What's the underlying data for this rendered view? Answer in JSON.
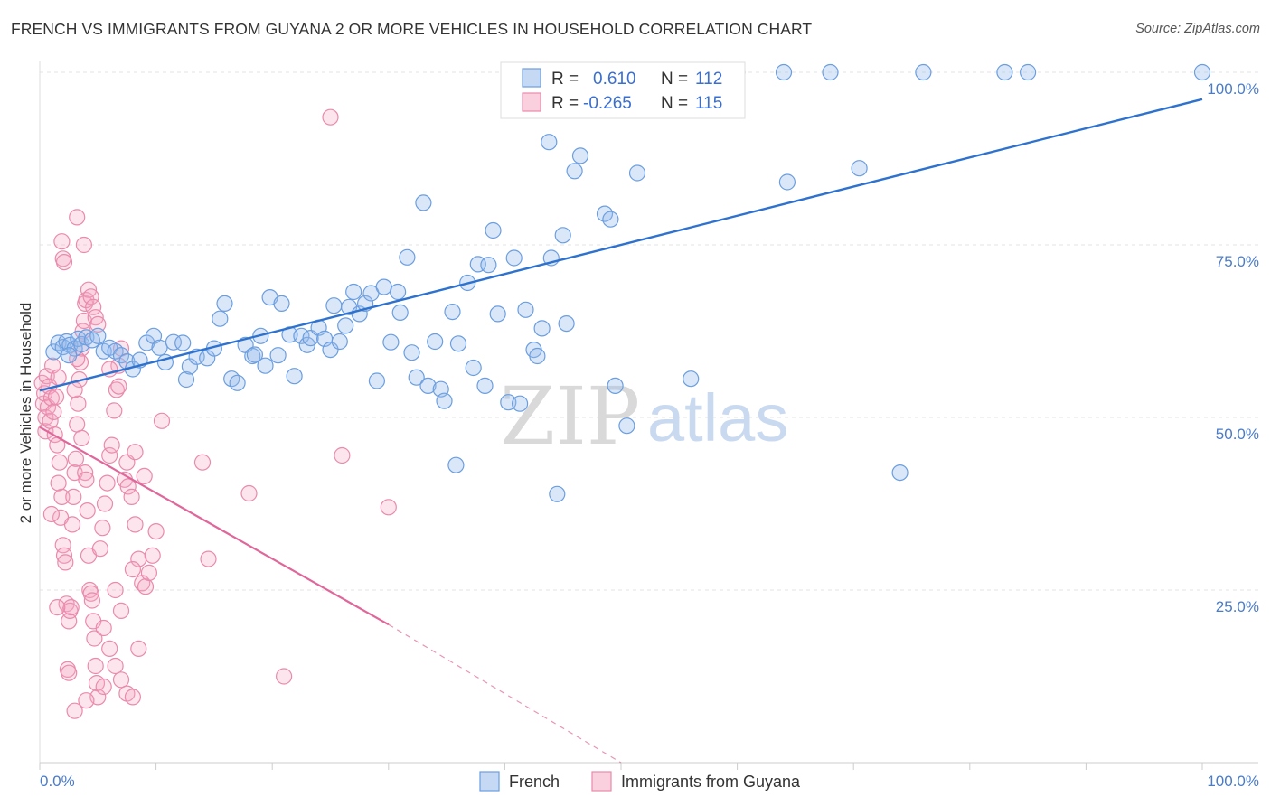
{
  "header": {
    "title": "FRENCH VS IMMIGRANTS FROM GUYANA 2 OR MORE VEHICLES IN HOUSEHOLD CORRELATION CHART",
    "source": "Source: ZipAtlas.com"
  },
  "watermark": {
    "zip": "ZIP",
    "atlas": "atlas"
  },
  "legend": {
    "rows": [
      {
        "r_label": "R =",
        "r_value": "0.610",
        "n_label": "N =",
        "n_value": "112"
      },
      {
        "r_label": "R =",
        "r_value": "-0.265",
        "n_label": "N =",
        "n_value": "115"
      }
    ]
  },
  "bottom_legend": {
    "french": "French",
    "guyana": "Immigrants from Guyana"
  },
  "colors": {
    "french": "#6b9ee0",
    "french_fill": "rgba(150,185,235,0.35)",
    "french_line": "#2e72cf",
    "guyana": "#ea8aac",
    "guyana_fill": "rgba(245,170,195,0.30)",
    "guyana_line": "#e0679a",
    "axis_text": "#4a7cc9",
    "grid": "#e3e3e3"
  },
  "chart_data": {
    "type": "scatter",
    "title": "FRENCH VS IMMIGRANTS FROM GUYANA 2 OR MORE VEHICLES IN HOUSEHOLD CORRELATION CHART",
    "xlabel": "",
    "ylabel": "2 or more Vehicles in Household",
    "xlim": [
      0,
      100
    ],
    "ylim": [
      0,
      100
    ],
    "x_tick_labels": [
      "0.0%",
      "100.0%"
    ],
    "y_tick_labels": [
      "25.0%",
      "50.0%",
      "75.0%",
      "100.0%"
    ],
    "y_ticks": [
      25,
      50,
      75,
      100
    ],
    "grid": true,
    "legend_position": "top-center",
    "series": [
      {
        "name": "French",
        "R": 0.61,
        "N": 112,
        "trend": {
          "x": [
            0,
            100
          ],
          "y": [
            53.9,
            96.1
          ]
        },
        "points": [
          [
            1.2,
            59.5
          ],
          [
            1.6,
            60.8
          ],
          [
            2.0,
            60.2
          ],
          [
            2.3,
            61.0
          ],
          [
            2.6,
            60.5
          ],
          [
            3.0,
            60.0
          ],
          [
            3.3,
            61.4
          ],
          [
            2.5,
            59.0
          ],
          [
            3.6,
            60.6
          ],
          [
            4.0,
            61.6
          ],
          [
            4.5,
            61.2
          ],
          [
            5.0,
            61.8
          ],
          [
            5.5,
            59.6
          ],
          [
            6.0,
            60.1
          ],
          [
            6.5,
            59.6
          ],
          [
            7.0,
            59.0
          ],
          [
            7.5,
            58.1
          ],
          [
            8.0,
            57.0
          ],
          [
            8.6,
            58.3
          ],
          [
            9.2,
            60.8
          ],
          [
            9.8,
            61.8
          ],
          [
            10.3,
            60.1
          ],
          [
            10.8,
            58.0
          ],
          [
            11.5,
            60.9
          ],
          [
            12.3,
            60.8
          ],
          [
            12.6,
            55.5
          ],
          [
            12.9,
            57.4
          ],
          [
            13.5,
            58.8
          ],
          [
            14.4,
            58.6
          ],
          [
            15.0,
            60.0
          ],
          [
            15.5,
            64.3
          ],
          [
            15.9,
            66.5
          ],
          [
            16.5,
            55.6
          ],
          [
            17.0,
            55.0
          ],
          [
            17.7,
            60.5
          ],
          [
            18.3,
            58.9
          ],
          [
            18.5,
            59.1
          ],
          [
            19.0,
            61.8
          ],
          [
            19.4,
            57.5
          ],
          [
            19.8,
            67.4
          ],
          [
            20.5,
            59.0
          ],
          [
            20.8,
            66.5
          ],
          [
            21.5,
            62.0
          ],
          [
            21.9,
            56.0
          ],
          [
            22.5,
            61.8
          ],
          [
            23.0,
            60.5
          ],
          [
            23.3,
            61.5
          ],
          [
            24.0,
            63.0
          ],
          [
            24.5,
            61.4
          ],
          [
            25.0,
            59.8
          ],
          [
            25.3,
            66.2
          ],
          [
            25.8,
            61.0
          ],
          [
            26.3,
            63.3
          ],
          [
            26.6,
            66.0
          ],
          [
            27.0,
            68.2
          ],
          [
            27.5,
            65.0
          ],
          [
            28.0,
            66.5
          ],
          [
            28.5,
            68.0
          ],
          [
            29.0,
            55.3
          ],
          [
            29.6,
            68.9
          ],
          [
            30.2,
            60.9
          ],
          [
            30.8,
            68.2
          ],
          [
            31.0,
            65.2
          ],
          [
            31.6,
            73.2
          ],
          [
            32.0,
            59.4
          ],
          [
            32.4,
            55.8
          ],
          [
            33.0,
            81.1
          ],
          [
            33.4,
            54.6
          ],
          [
            34.0,
            61.0
          ],
          [
            34.5,
            54.1
          ],
          [
            34.8,
            52.4
          ],
          [
            35.5,
            65.3
          ],
          [
            35.8,
            43.1
          ],
          [
            36.0,
            60.7
          ],
          [
            36.8,
            69.5
          ],
          [
            37.3,
            57.2
          ],
          [
            37.7,
            72.2
          ],
          [
            38.3,
            54.6
          ],
          [
            38.6,
            72.1
          ],
          [
            39.0,
            77.1
          ],
          [
            39.4,
            65.0
          ],
          [
            40.3,
            52.2
          ],
          [
            40.8,
            73.1
          ],
          [
            41.3,
            52.0
          ],
          [
            41.8,
            65.6
          ],
          [
            42.5,
            59.8
          ],
          [
            42.8,
            58.9
          ],
          [
            43.2,
            62.9
          ],
          [
            43.8,
            89.9
          ],
          [
            44.0,
            73.1
          ],
          [
            44.5,
            38.9
          ],
          [
            45.0,
            76.4
          ],
          [
            45.3,
            63.6
          ],
          [
            46.0,
            85.7
          ],
          [
            46.5,
            87.9
          ],
          [
            47.3,
            100.0
          ],
          [
            48.0,
            100.0
          ],
          [
            48.6,
            79.5
          ],
          [
            49.1,
            78.7
          ],
          [
            49.5,
            54.6
          ],
          [
            50.5,
            48.8
          ],
          [
            51.4,
            85.4
          ],
          [
            53.0,
            100.0
          ],
          [
            56.0,
            55.6
          ],
          [
            60.0,
            100.0
          ],
          [
            64.0,
            100.0
          ],
          [
            64.3,
            84.1
          ],
          [
            68.0,
            100.0
          ],
          [
            70.5,
            86.1
          ],
          [
            74.0,
            42.0
          ],
          [
            76.0,
            100.0
          ],
          [
            83.0,
            100.0
          ],
          [
            85.0,
            100.0
          ],
          [
            100.0,
            100.0
          ]
        ]
      },
      {
        "name": "Immigrants from Guyana",
        "R": -0.265,
        "N": 115,
        "trend": {
          "x": [
            0,
            30
          ],
          "y": [
            48.6,
            20.0
          ]
        },
        "trend_dashed": {
          "x": [
            30,
            50
          ],
          "y": [
            20.0,
            0.0
          ]
        },
        "points": [
          [
            0.2,
            55.0
          ],
          [
            0.3,
            52.0
          ],
          [
            0.4,
            53.5
          ],
          [
            0.5,
            50.0
          ],
          [
            0.5,
            48.0
          ],
          [
            0.6,
            56.0
          ],
          [
            0.7,
            51.5
          ],
          [
            0.8,
            54.5
          ],
          [
            0.9,
            49.5
          ],
          [
            1.0,
            52.8
          ],
          [
            1.1,
            57.5
          ],
          [
            1.2,
            50.8
          ],
          [
            1.3,
            47.5
          ],
          [
            1.4,
            53.0
          ],
          [
            1.5,
            46.0
          ],
          [
            1.6,
            55.8
          ],
          [
            1.7,
            43.5
          ],
          [
            1.8,
            35.5
          ],
          [
            1.9,
            38.5
          ],
          [
            2.0,
            31.5
          ],
          [
            2.1,
            30.0
          ],
          [
            2.2,
            29.0
          ],
          [
            2.3,
            23.0
          ],
          [
            2.4,
            13.5
          ],
          [
            2.5,
            20.5
          ],
          [
            2.6,
            22.0
          ],
          [
            2.7,
            22.5
          ],
          [
            2.8,
            34.5
          ],
          [
            2.9,
            38.5
          ],
          [
            3.0,
            42.0
          ],
          [
            3.1,
            44.0
          ],
          [
            3.2,
            49.0
          ],
          [
            3.3,
            52.0
          ],
          [
            3.4,
            55.5
          ],
          [
            3.5,
            58.0
          ],
          [
            3.6,
            60.0
          ],
          [
            3.7,
            62.5
          ],
          [
            3.8,
            64.0
          ],
          [
            3.9,
            66.5
          ],
          [
            4.0,
            67.0
          ],
          [
            1.9,
            75.5
          ],
          [
            2.0,
            73.0
          ],
          [
            2.1,
            72.5
          ],
          [
            3.2,
            79.0
          ],
          [
            3.8,
            75.0
          ],
          [
            4.2,
            68.5
          ],
          [
            4.4,
            67.5
          ],
          [
            4.6,
            66.0
          ],
          [
            4.8,
            64.5
          ],
          [
            5.0,
            63.5
          ],
          [
            3.0,
            54.0
          ],
          [
            3.2,
            58.5
          ],
          [
            3.6,
            47.0
          ],
          [
            3.9,
            42.0
          ],
          [
            4.0,
            41.0
          ],
          [
            4.1,
            36.5
          ],
          [
            4.2,
            30.0
          ],
          [
            4.3,
            25.0
          ],
          [
            4.4,
            24.5
          ],
          [
            4.5,
            23.5
          ],
          [
            4.6,
            20.5
          ],
          [
            4.7,
            18.0
          ],
          [
            4.8,
            14.0
          ],
          [
            4.9,
            11.5
          ],
          [
            5.0,
            9.5
          ],
          [
            5.2,
            31.0
          ],
          [
            5.4,
            34.0
          ],
          [
            5.6,
            37.5
          ],
          [
            5.8,
            40.5
          ],
          [
            6.0,
            44.5
          ],
          [
            6.2,
            46.0
          ],
          [
            6.4,
            51.0
          ],
          [
            6.6,
            54.0
          ],
          [
            6.8,
            57.5
          ],
          [
            7.0,
            60.0
          ],
          [
            7.3,
            41.0
          ],
          [
            7.6,
            40.0
          ],
          [
            7.9,
            38.5
          ],
          [
            8.2,
            34.5
          ],
          [
            8.5,
            29.5
          ],
          [
            8.8,
            26.0
          ],
          [
            9.1,
            25.5
          ],
          [
            9.4,
            27.5
          ],
          [
            9.7,
            30.0
          ],
          [
            10.0,
            33.5
          ],
          [
            8.0,
            28.0
          ],
          [
            6.5,
            25.0
          ],
          [
            7.0,
            22.0
          ],
          [
            5.5,
            19.5
          ],
          [
            6.0,
            16.5
          ],
          [
            6.5,
            14.0
          ],
          [
            7.0,
            12.0
          ],
          [
            7.5,
            10.0
          ],
          [
            8.0,
            9.5
          ],
          [
            8.5,
            16.5
          ],
          [
            1.5,
            22.5
          ],
          [
            2.5,
            13.0
          ],
          [
            3.0,
            7.5
          ],
          [
            4.0,
            9.0
          ],
          [
            5.5,
            11.0
          ],
          [
            6.0,
            57.0
          ],
          [
            6.8,
            54.5
          ],
          [
            7.5,
            43.5
          ],
          [
            8.2,
            45.0
          ],
          [
            9.0,
            41.5
          ],
          [
            10.5,
            49.5
          ],
          [
            14.0,
            43.5
          ],
          [
            14.5,
            29.5
          ],
          [
            18.0,
            39.0
          ],
          [
            21.0,
            12.5
          ],
          [
            25.0,
            93.5
          ],
          [
            26.0,
            44.5
          ],
          [
            30.0,
            37.0
          ],
          [
            1.0,
            36.0
          ],
          [
            1.6,
            40.5
          ]
        ]
      }
    ]
  }
}
